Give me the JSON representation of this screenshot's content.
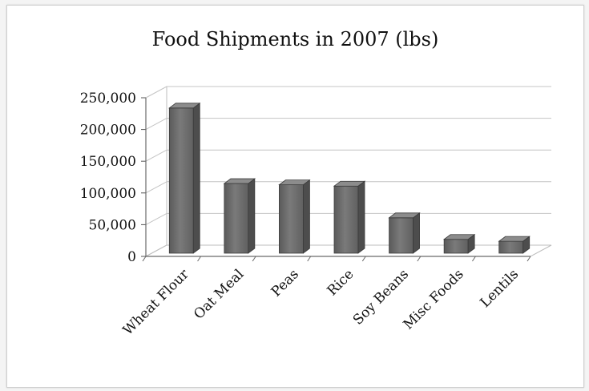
{
  "chart_data": {
    "type": "bar",
    "title": "Food Shipments in 2007 (lbs)",
    "xlabel": "",
    "ylabel": "",
    "ylim": [
      0,
      250000
    ],
    "yticks": [
      0,
      50000,
      100000,
      150000,
      200000,
      250000
    ],
    "ytick_labels": [
      "0",
      "50,000",
      "100,000",
      "150,000",
      "200,000",
      "250,000"
    ],
    "categories": [
      "Wheat Flour",
      "Oat Meal",
      "Peas",
      "Rice",
      "Soy Beans",
      "Misc Foods",
      "Lentils"
    ],
    "values": [
      225000,
      106000,
      104000,
      102000,
      52000,
      18000,
      15000
    ],
    "grid": true,
    "legend": "none",
    "style": "3d-column",
    "bar_color": "#6e6e6e"
  }
}
